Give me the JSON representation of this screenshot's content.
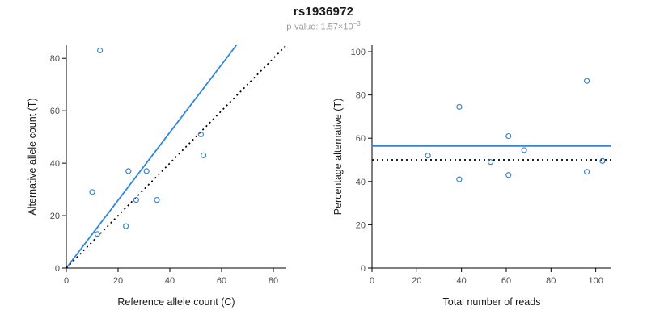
{
  "title": "rs1936972",
  "subtitle": {
    "base": "p-value: 1.57×10",
    "exponent": "−3"
  },
  "colors": {
    "points": "#3b87c8",
    "fit_line": "#2e86e0",
    "reference_line": "#000000",
    "subtitle_text": "#9a9a9a",
    "axis": "#000000"
  },
  "chart_data": [
    {
      "type": "scatter",
      "title": "",
      "xlabel": "Reference allele count (C)",
      "ylabel": "Alternative allele count (T)",
      "xlim": [
        0,
        85
      ],
      "ylim": [
        0,
        85
      ],
      "xticks": [
        0,
        20,
        40,
        60,
        80
      ],
      "yticks": [
        0,
        20,
        40,
        60,
        80
      ],
      "grid": false,
      "legend": "none",
      "points": [
        [
          13,
          83
        ],
        [
          10,
          29
        ],
        [
          12,
          13
        ],
        [
          23,
          16
        ],
        [
          24,
          37
        ],
        [
          27,
          26
        ],
        [
          31,
          37
        ],
        [
          35,
          26
        ],
        [
          52,
          51
        ],
        [
          53,
          43
        ]
      ],
      "lines": [
        {
          "name": "fit",
          "style": "solid",
          "color": "#2e86e0",
          "from": [
            0,
            0
          ],
          "to": [
            65.7,
            85
          ]
        },
        {
          "name": "identity",
          "style": "dotted",
          "color": "#000000",
          "from": [
            0,
            0
          ],
          "to": [
            85,
            85
          ]
        }
      ]
    },
    {
      "type": "scatter",
      "title": "",
      "xlabel": "Total number of reads",
      "ylabel": "Percentage alternative (T)",
      "xlim": [
        0,
        107
      ],
      "ylim": [
        0,
        103
      ],
      "xticks": [
        0,
        20,
        40,
        60,
        80,
        100
      ],
      "yticks": [
        0,
        20,
        40,
        60,
        80,
        100
      ],
      "grid": false,
      "legend": "none",
      "points": [
        [
          25,
          52
        ],
        [
          39,
          74.5
        ],
        [
          39,
          41
        ],
        [
          53,
          49
        ],
        [
          61,
          61
        ],
        [
          61,
          43
        ],
        [
          68,
          54.5
        ],
        [
          96,
          86.5
        ],
        [
          96,
          44.5
        ],
        [
          103,
          49.5
        ]
      ],
      "lines": [
        {
          "name": "mean",
          "style": "solid",
          "color": "#2e86e0",
          "from": [
            0,
            56.4
          ],
          "to": [
            107,
            56.4
          ]
        },
        {
          "name": "expected",
          "style": "dotted",
          "color": "#000000",
          "from": [
            0,
            50
          ],
          "to": [
            107,
            50
          ]
        }
      ]
    }
  ]
}
